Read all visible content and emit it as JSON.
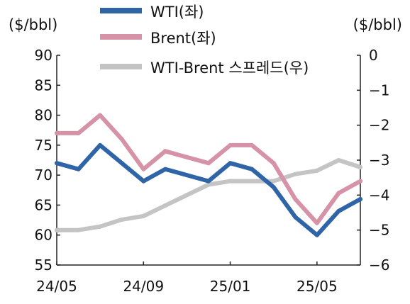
{
  "chart_data": {
    "type": "line",
    "y_left_label": "($/bbl)",
    "y_right_label": "($/bbl)",
    "y_left_range": [
      55,
      90
    ],
    "y_left_ticks": [
      90,
      85,
      80,
      75,
      70,
      65,
      60,
      55
    ],
    "y_right_range": [
      -6,
      0
    ],
    "y_right_ticks": [
      0,
      -1,
      -2,
      -3,
      -4,
      -5,
      -6
    ],
    "x_tick_labels": [
      "24/05",
      "24/09",
      "25/01",
      "25/05"
    ],
    "legend_position": "top-center",
    "colors": {
      "wti": "#2f64a6",
      "brent": "#d692a6",
      "spread": "#c4c4c4"
    },
    "x": [
      "24/05",
      "24/06",
      "24/07",
      "24/08",
      "24/09",
      "24/10",
      "24/11",
      "24/12",
      "25/01",
      "25/02",
      "25/03",
      "25/04",
      "25/05",
      "25/06",
      "25/07"
    ],
    "series": [
      {
        "name": "WTI(좌)",
        "axis": "left",
        "values": [
          72,
          71,
          75,
          72,
          69,
          71,
          70,
          69,
          72,
          71,
          68,
          63,
          60,
          64,
          66
        ]
      },
      {
        "name": "Brent(좌)",
        "axis": "left",
        "values": [
          77,
          77,
          80,
          76,
          71,
          74,
          73,
          72,
          75,
          75,
          72,
          66,
          62,
          67,
          69
        ]
      },
      {
        "name": "WTI-Brent 스프레드(우)",
        "axis": "right",
        "values": [
          -5.0,
          -5.0,
          -4.9,
          -4.7,
          -4.6,
          -4.3,
          -4.0,
          -3.7,
          -3.6,
          -3.6,
          -3.6,
          -3.4,
          -3.3,
          -3.0,
          -3.2
        ]
      }
    ]
  }
}
